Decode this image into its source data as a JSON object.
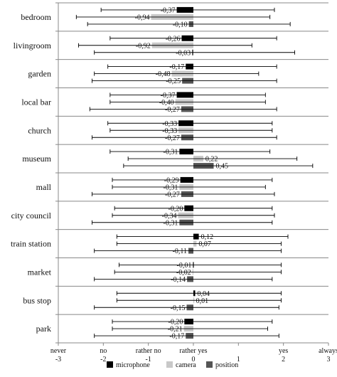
{
  "chart_data": {
    "type": "bar",
    "orientation": "horizontal",
    "categories": [
      "bedroom",
      "livingroom",
      "garden",
      "local bar",
      "church",
      "museum",
      "mall",
      "city council",
      "train station",
      "market",
      "bus stop",
      "park"
    ],
    "series": [
      {
        "name": "microphone",
        "color": "#000000",
        "values": [
          -0.37,
          -0.26,
          -0.17,
          -0.37,
          -0.33,
          -0.31,
          -0.29,
          -0.2,
          0.12,
          -0.01,
          0.04,
          -0.2
        ],
        "labels": [
          "-0,37",
          "-0,26",
          "-0,17",
          "-0,37",
          "-0,33",
          "-0,31",
          "-0,29",
          "-0,20",
          "0,12",
          "-0,01",
          "0,04",
          "-0,20"
        ],
        "error": [
          [
            -2.05,
            1.8
          ],
          [
            -1.85,
            1.85
          ],
          [
            -1.9,
            1.85
          ],
          [
            -1.85,
            1.6
          ],
          [
            -1.9,
            1.75
          ],
          [
            -1.85,
            1.7
          ],
          [
            -1.8,
            1.75
          ],
          [
            -1.75,
            1.75
          ],
          [
            -1.7,
            2.1
          ],
          [
            -1.65,
            1.95
          ],
          [
            -1.7,
            1.95
          ],
          [
            -1.8,
            1.75
          ]
        ]
      },
      {
        "name": "camera",
        "color": "#c8c8c8",
        "values": [
          -0.94,
          -0.92,
          -0.48,
          -0.4,
          -0.33,
          0.22,
          -0.31,
          -0.34,
          0.07,
          -0.02,
          0.01,
          -0.21
        ],
        "labels": [
          "-0,94",
          "-0,92",
          "-0,48",
          "-0,40",
          "-0,33",
          "0,22",
          "-0,31",
          "-0,34",
          "0,07",
          "-0,02",
          "0,01",
          "-0,21"
        ],
        "error": [
          [
            -2.6,
            1.7
          ],
          [
            -2.55,
            1.3
          ],
          [
            -2.2,
            1.45
          ],
          [
            -1.85,
            1.6
          ],
          [
            -1.85,
            1.75
          ],
          [
            -1.45,
            2.3
          ],
          [
            -1.8,
            1.6
          ],
          [
            -1.8,
            1.8
          ],
          [
            -1.7,
            1.95
          ],
          [
            -1.75,
            1.95
          ],
          [
            -1.7,
            1.95
          ],
          [
            -1.8,
            1.65
          ]
        ]
      },
      {
        "name": "position",
        "color": "#555555",
        "values": [
          -0.1,
          -0.03,
          -0.25,
          -0.27,
          -0.27,
          0.45,
          -0.27,
          -0.31,
          -0.11,
          -0.14,
          -0.15,
          -0.17
        ],
        "labels": [
          "-0,10",
          "-0,03",
          "-0,25",
          "-0,27",
          "-0,27",
          "0,45",
          "-0,27",
          "-0,31",
          "-0,11",
          "-0,14",
          "-0,15",
          "-0,17"
        ],
        "error": [
          [
            -2.35,
            2.15
          ],
          [
            -2.2,
            2.25
          ],
          [
            -2.25,
            1.85
          ],
          [
            -2.3,
            1.85
          ],
          [
            -2.25,
            1.85
          ],
          [
            -1.55,
            2.65
          ],
          [
            -2.25,
            1.8
          ],
          [
            -2.25,
            1.75
          ],
          [
            -2.2,
            1.95
          ],
          [
            -2.2,
            1.75
          ],
          [
            -2.2,
            1.9
          ],
          [
            -2.2,
            1.9
          ]
        ]
      }
    ],
    "x_ticks": [
      {
        "value": -3,
        "word": "never",
        "num": "-3"
      },
      {
        "value": -2,
        "word": "no",
        "num": "-2"
      },
      {
        "value": -1,
        "word": "rather no",
        "num": "-1"
      },
      {
        "value": 0,
        "word": "rather yes",
        "num": "0"
      },
      {
        "value": 1,
        "word": "",
        "num": "1"
      },
      {
        "value": 2,
        "word": "yes",
        "num": "2"
      },
      {
        "value": 3,
        "word": "always",
        "num": "3"
      }
    ],
    "xlim": [
      -3,
      3
    ],
    "grid": "horizontal separators",
    "legend_position": "bottom",
    "title": "",
    "xlabel": "",
    "ylabel": ""
  }
}
